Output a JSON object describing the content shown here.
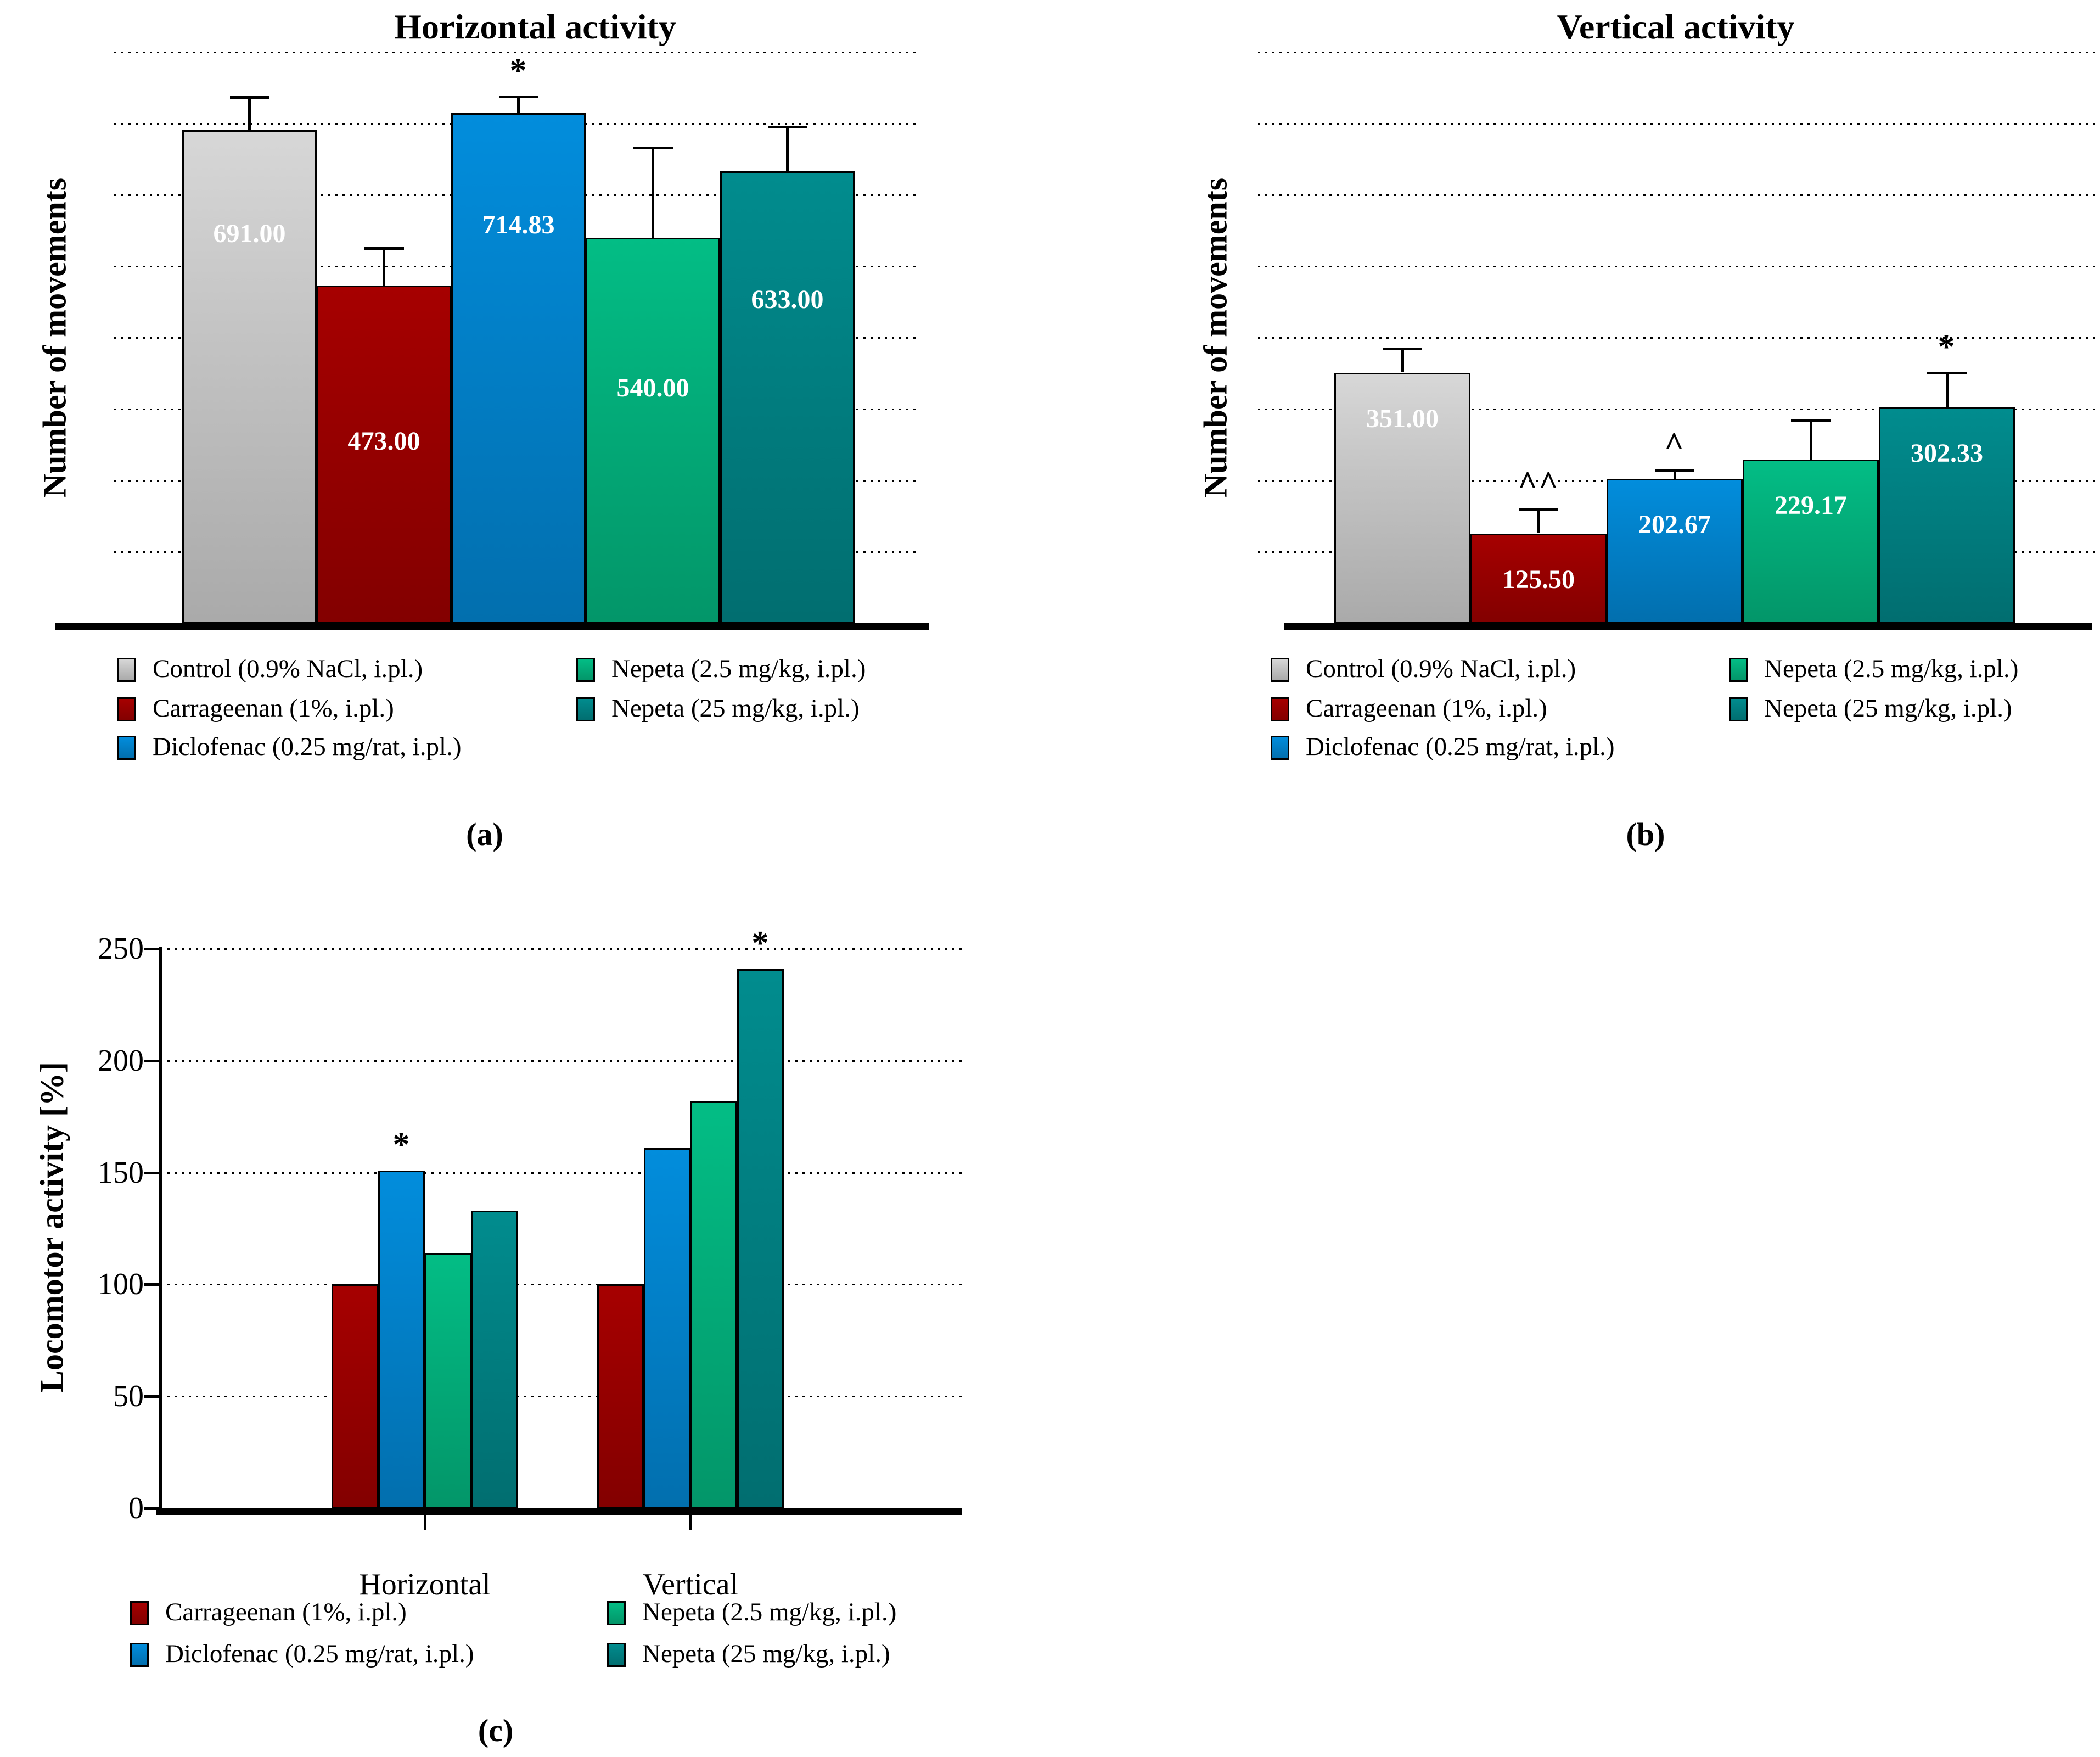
{
  "chart_data": [
    {
      "id": "a",
      "type": "bar",
      "title": "Horizontal activity",
      "ylabel": "Number of movements",
      "panel_label": "(a)",
      "categories": [
        "Control (0.9% NaCl, i.pl.)",
        "Carrageenan (1%, i.pl.)",
        "Diclofenac (0.25 mg/rat, i.pl.)",
        "Nepeta (2.5 mg/kg, i.pl.)",
        "Nepeta (25 mg/kg, i.pl.)"
      ],
      "values": [
        691.0,
        473.0,
        714.83,
        540.0,
        633.0
      ],
      "value_labels": [
        "691.00",
        "473.00",
        "714.83",
        "540.00",
        "633.00"
      ],
      "errors_plus": [
        48,
        54,
        25,
        128,
        64
      ],
      "annotations": [
        "",
        "",
        "*",
        "",
        ""
      ],
      "colors": [
        "#c3c3c3",
        "#970000",
        "#0280c8",
        "#03ac79",
        "#017f81"
      ],
      "ylim": [
        0,
        820
      ],
      "grid_interval": 100,
      "grid_style": "dotted",
      "legend_position": "below"
    },
    {
      "id": "b",
      "type": "bar",
      "title": "Vertical activity",
      "ylabel": "Number of movements",
      "panel_label": "(b)",
      "categories": [
        "Control (0.9% NaCl, i.pl.)",
        "Carrageenan (1%, i.pl.)",
        "Diclofenac (0.25 mg/rat, i.pl.)",
        "Nepeta (2.5 mg/kg, i.pl.)",
        "Nepeta (25 mg/kg, i.pl.)"
      ],
      "values": [
        351.0,
        125.5,
        202.67,
        229.17,
        302.33
      ],
      "value_labels": [
        "351.00",
        "125.50",
        "202.67",
        "229.17",
        "302.33"
      ],
      "errors_plus": [
        35,
        35,
        13,
        57,
        50
      ],
      "annotations": [
        "",
        "^^",
        "^",
        "",
        "*"
      ],
      "colors": [
        "#c3c3c3",
        "#970000",
        "#0280c8",
        "#03ac79",
        "#017f81"
      ],
      "ylim": [
        0,
        820
      ],
      "grid_interval": 100,
      "grid_style": "dotted",
      "legend_position": "below"
    },
    {
      "id": "c",
      "type": "bar",
      "grouped": true,
      "title": "",
      "ylabel": "Locomotor activity [%]",
      "panel_label": "(c)",
      "categories": [
        "Horizontal",
        "Vertical"
      ],
      "series": [
        {
          "name": "Carrageenan (1%, i.pl.)",
          "color": "#970000",
          "values": [
            100,
            100
          ]
        },
        {
          "name": "Diclofenac (0.25 mg/rat, i.pl.)",
          "color": "#0280c8",
          "values": [
            151,
            161
          ]
        },
        {
          "name": "Nepeta (2.5 mg/kg, i.pl.)",
          "color": "#03ac79",
          "values": [
            114,
            182
          ]
        },
        {
          "name": "Nepeta (25 mg/kg, i.pl.)",
          "color": "#017f81",
          "values": [
            133,
            241
          ]
        }
      ],
      "annotations": [
        [
          "",
          "*",
          "",
          ""
        ],
        [
          "",
          "",
          "",
          "*"
        ]
      ],
      "yticks": [
        0,
        50,
        100,
        150,
        200,
        250
      ],
      "ytick_labels": [
        "0",
        "50",
        "100",
        "150",
        "200",
        "250"
      ],
      "ylim": [
        0,
        250
      ],
      "grid_style": "dotted",
      "legend_position": "below"
    }
  ]
}
